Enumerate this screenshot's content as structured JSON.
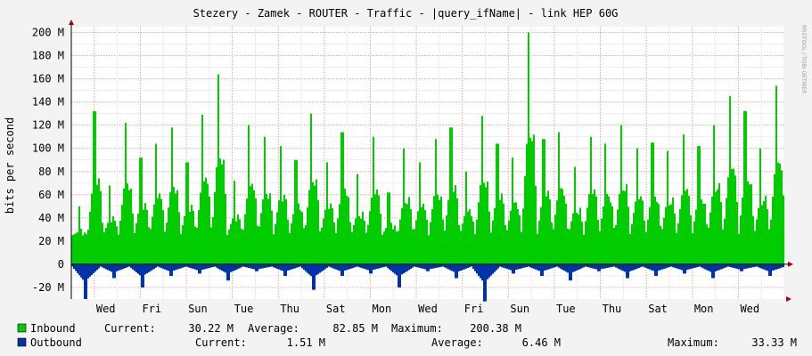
{
  "chart_data": {
    "type": "area",
    "title": "Stezery - Zamek - ROUTER - Traffic - |query_ifName| - link HEP 60G",
    "ylabel": "bits per second",
    "watermark": "RRDTOOL / TOBI OETIKER",
    "ylim": [
      -30,
      205
    ],
    "y_ticks": [
      {
        "value": 200,
        "label": "200 M"
      },
      {
        "value": 180,
        "label": "180 M"
      },
      {
        "value": 160,
        "label": "160 M"
      },
      {
        "value": 140,
        "label": "140 M"
      },
      {
        "value": 120,
        "label": "120 M"
      },
      {
        "value": 100,
        "label": "100 M"
      },
      {
        "value": 80,
        "label": "80 M"
      },
      {
        "value": 60,
        "label": "60 M"
      },
      {
        "value": 40,
        "label": "40 M"
      },
      {
        "value": 20,
        "label": "20 M"
      },
      {
        "value": 0,
        "label": "0"
      },
      {
        "value": -20,
        "label": "-20 M"
      }
    ],
    "x_ticks": [
      "Wed",
      "Fri",
      "Sun",
      "Tue",
      "Thu",
      "Sat",
      "Mon",
      "Wed",
      "Fri",
      "Sun",
      "Tue",
      "Thu",
      "Sat",
      "Mon",
      "Wed"
    ],
    "colors": {
      "inbound": "#00cc00",
      "outbound": "#0033aa",
      "grid": "#e0a0a0",
      "axis": "#000000"
    },
    "days": 31,
    "series": [
      {
        "name": "Inbound",
        "color": "#00cc00",
        "daily_peaks": [
          50,
          132,
          68,
          122,
          92,
          104,
          118,
          88,
          129,
          164,
          72,
          120,
          110,
          102,
          90,
          130,
          88,
          114,
          78,
          110,
          62,
          100,
          88,
          108,
          118,
          80,
          128,
          104,
          92,
          200,
          108,
          114,
          84,
          110,
          104,
          120,
          100,
          105,
          98,
          112,
          102,
          120,
          145,
          132,
          100,
          154
        ],
        "daily_low": 25,
        "current": "30.22 M",
        "average": "82.85 M",
        "maximum": "200.38 M"
      },
      {
        "name": "Outbound",
        "color": "#0033aa",
        "daily_peaks": [
          -30,
          -12,
          -20,
          -10,
          -8,
          -14,
          -6,
          -10,
          -22,
          -10,
          -8,
          -20,
          -6,
          -12,
          -32,
          -8,
          -10,
          -14,
          -6,
          -12,
          -10,
          -8,
          -12,
          -6,
          -10
        ],
        "current": "1.51 M",
        "average": "6.46 M",
        "maximum": "33.33 M"
      }
    ]
  },
  "legend": {
    "inbound": {
      "label": "Inbound",
      "current_label": "Current:",
      "current": "30.22 M",
      "average_label": "Average:",
      "average": "82.85 M",
      "maximum_label": "Maximum:",
      "maximum": "200.38 M"
    },
    "outbound": {
      "label": "Outbound",
      "current_label": "Current:",
      "current": "1.51 M",
      "average_label": "Average:",
      "average": "6.46 M",
      "maximum_label": "Maximum:",
      "maximum": "33.33 M"
    }
  }
}
